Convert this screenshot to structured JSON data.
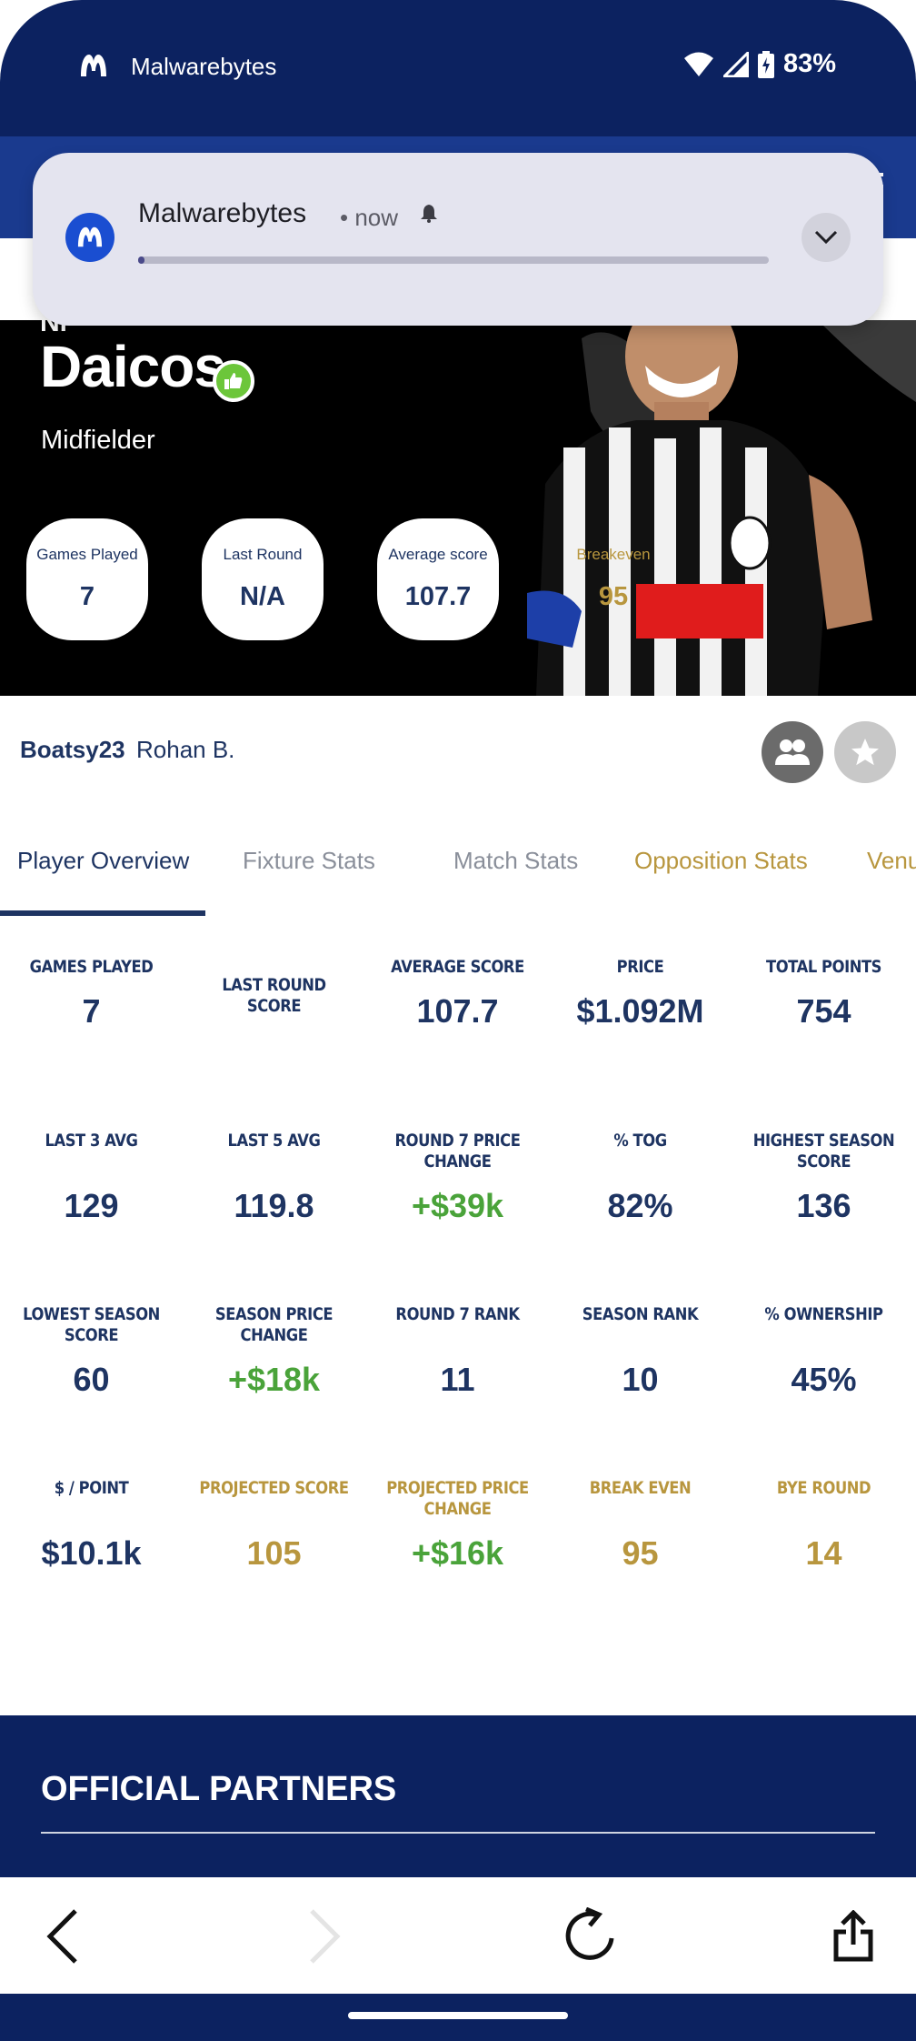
{
  "status_bar": {
    "app_name": "Malwarebytes",
    "battery": "83%"
  },
  "notification": {
    "app_name": "Malwarebytes",
    "time": "• now",
    "progress": 0.01
  },
  "player": {
    "partial_first_name": "Ni",
    "last_name": "Daicos",
    "position": "Midfielder",
    "pills": [
      {
        "label": "Games Played",
        "value": "7"
      },
      {
        "label": "Last Round",
        "value": "N/A"
      },
      {
        "label": "Average score",
        "value": "107.7"
      },
      {
        "label": "Breakeven",
        "value": "95"
      }
    ]
  },
  "user": {
    "handle": "Boatsy23",
    "name": "Rohan B."
  },
  "tabs": [
    {
      "label": "Player Overview"
    },
    {
      "label": "Fixture Stats"
    },
    {
      "label": "Match Stats"
    },
    {
      "label": "Opposition Stats"
    },
    {
      "label": "Venu"
    }
  ],
  "stats": [
    {
      "label": "GAMES PLAYED",
      "value": "7"
    },
    {
      "label": "LAST ROUND SCORE",
      "value": ""
    },
    {
      "label": "AVERAGE SCORE",
      "value": "107.7"
    },
    {
      "label": "PRICE",
      "value": "$1.092M"
    },
    {
      "label": "TOTAL POINTS",
      "value": "754"
    },
    {
      "label": "LAST 3 AVG",
      "value": "129"
    },
    {
      "label": "LAST 5 AVG",
      "value": "119.8"
    },
    {
      "label": "ROUND 7 PRICE CHANGE",
      "value": "+$39k"
    },
    {
      "label": "% TOG",
      "value": "82%"
    },
    {
      "label": "HIGHEST SEASON SCORE",
      "value": "136"
    },
    {
      "label": "LOWEST SEASON SCORE",
      "value": "60"
    },
    {
      "label": "SEASON PRICE CHANGE",
      "value": "+$18k"
    },
    {
      "label": "ROUND 7 RANK",
      "value": "11"
    },
    {
      "label": "SEASON RANK",
      "value": "10"
    },
    {
      "label": "% OWNERSHIP",
      "value": "45%"
    },
    {
      "label": "$ / POINT",
      "value": "$10.1k"
    },
    {
      "label": "PROJECTED SCORE",
      "value": "105"
    },
    {
      "label": "PROJECTED PRICE CHANGE",
      "value": "+$16k"
    },
    {
      "label": "BREAK EVEN",
      "value": "95"
    },
    {
      "label": "BYE ROUND",
      "value": "14"
    }
  ],
  "partners": {
    "title": "OFFICIAL PARTNERS"
  },
  "colors": {
    "navy": "#0c2260",
    "text_navy": "#1e3462",
    "gold": "#b8963e",
    "green": "#4aa33a"
  }
}
